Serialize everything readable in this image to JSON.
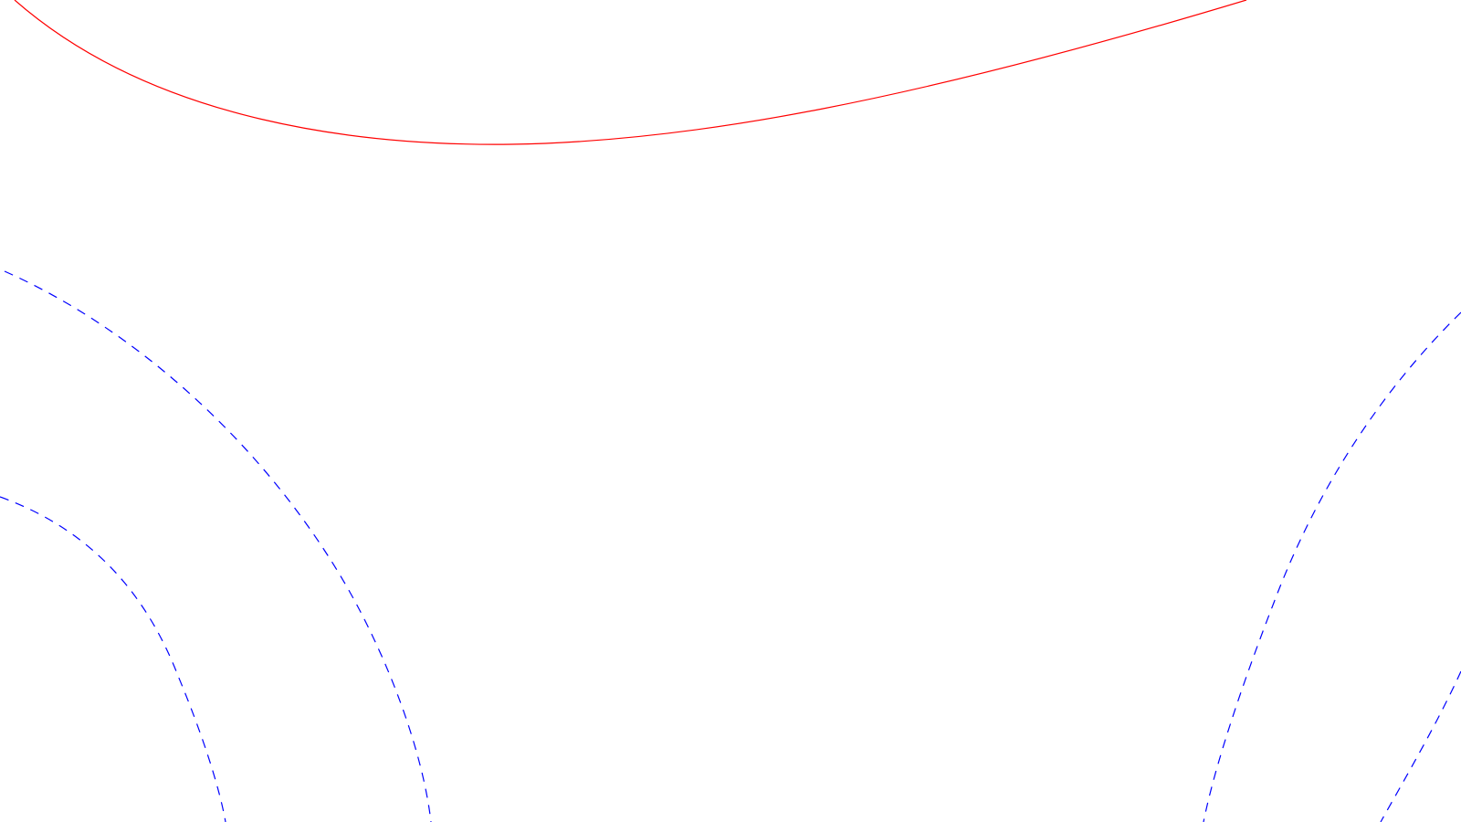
{
  "figure": {
    "background": "#ffffff",
    "curves": [
      {
        "id": "solid-arc",
        "style": "solid",
        "color": "#ff0000"
      },
      {
        "id": "dashed-arc-left-outer",
        "style": "dashed",
        "color": "#0000ff"
      },
      {
        "id": "dashed-arc-left-inner",
        "style": "dashed",
        "color": "#0000ff"
      },
      {
        "id": "dashed-arc-right-inner",
        "style": "dashed",
        "color": "#0000ff"
      },
      {
        "id": "dashed-arc-right-outer",
        "style": "dashed",
        "color": "#0000ff"
      }
    ]
  }
}
